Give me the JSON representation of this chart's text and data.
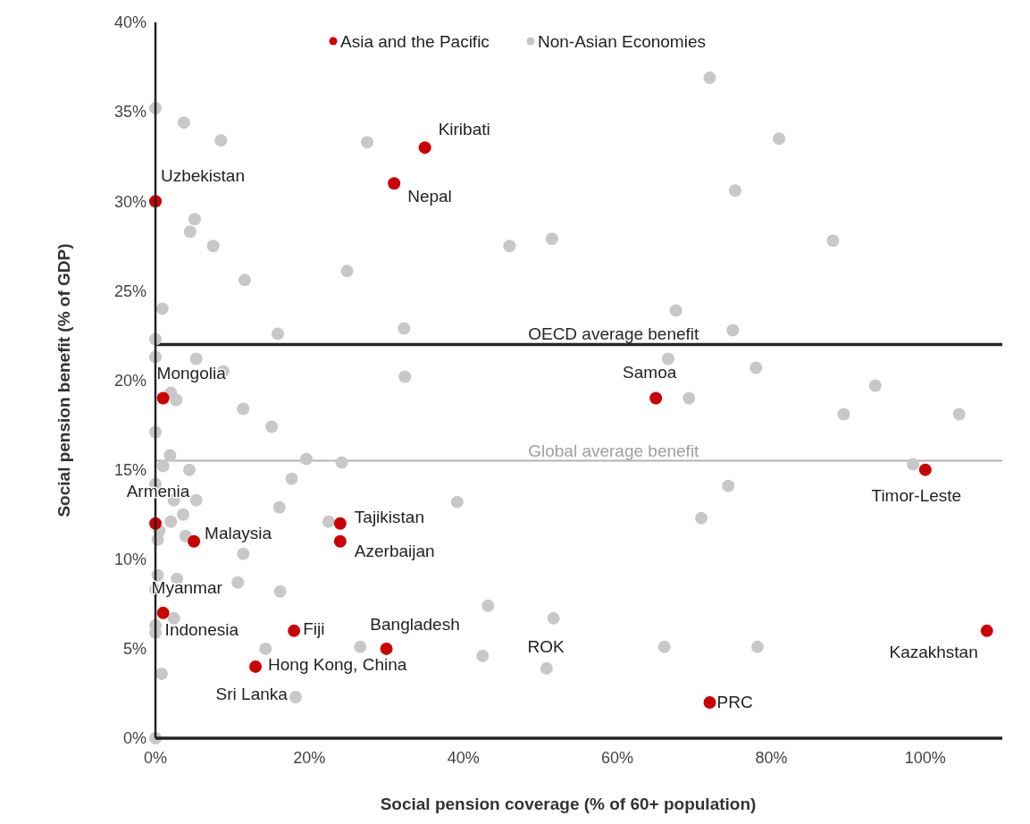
{
  "chart_data": {
    "type": "scatter",
    "xlabel": "Social pension coverage (% of 60+ population)",
    "ylabel": "Social pension benefit (% of GDP)",
    "xlim": [
      0,
      110
    ],
    "ylim": [
      0,
      40
    ],
    "xticks": [
      {
        "value": 0,
        "label": "0%"
      },
      {
        "value": 20,
        "label": "20%"
      },
      {
        "value": 40,
        "label": "40%"
      },
      {
        "value": 60,
        "label": "60%"
      },
      {
        "value": 80,
        "label": "80%"
      },
      {
        "value": 100,
        "label": "100%"
      }
    ],
    "yticks": [
      {
        "value": 0,
        "label": "0%"
      },
      {
        "value": 5,
        "label": "5%"
      },
      {
        "value": 10,
        "label": "10%"
      },
      {
        "value": 15,
        "label": "15%"
      },
      {
        "value": 20,
        "label": "20%"
      },
      {
        "value": 25,
        "label": "25%"
      },
      {
        "value": 30,
        "label": "30%"
      },
      {
        "value": 35,
        "label": "35%"
      },
      {
        "value": 40,
        "label": "40%"
      }
    ],
    "grid": false,
    "legend": "top",
    "marker": "circle",
    "series": [
      {
        "name": "Non-Asian Economies",
        "color": "#c8c8c8",
        "x": [
          0,
          3.7,
          8.5,
          27.5,
          5.1,
          4.5,
          7.5,
          11.6,
          24.9,
          46,
          51.5,
          0.9,
          15.9,
          32.3,
          0,
          0,
          5.3,
          8.8,
          32.4,
          72,
          81,
          75.3,
          88,
          67.6,
          75,
          66.6,
          78,
          93.5,
          69.3,
          89.4,
          104.4,
          98.4,
          74.4,
          70.9,
          51.7,
          66.1,
          78.2,
          50.8,
          2,
          2.7,
          11.4,
          15.1,
          0,
          1.9,
          1,
          4.4,
          19.6,
          24.2,
          39.2,
          17.7,
          0,
          5.3,
          2.4,
          16.1,
          3.6,
          2,
          22.5,
          0.5,
          0.3,
          3.9,
          11.4,
          0.3,
          2.8,
          10.7,
          16.2,
          0,
          0,
          0,
          2.4,
          43.2,
          14.3,
          26.6,
          42.5,
          0.8,
          18.2,
          0
        ],
        "values": [
          35.2,
          34.4,
          33.4,
          33.3,
          29,
          28.3,
          27.5,
          25.6,
          26.1,
          27.5,
          27.9,
          24,
          22.6,
          22.9,
          22.3,
          21.3,
          21.2,
          20.5,
          20.2,
          36.9,
          33.5,
          30.6,
          27.8,
          23.9,
          22.8,
          21.2,
          20.7,
          19.7,
          19,
          18.1,
          18.1,
          15.3,
          14.1,
          12.3,
          6.7,
          5.1,
          5.1,
          3.9,
          19.3,
          18.9,
          18.4,
          17.4,
          17.1,
          15.8,
          15.2,
          15,
          15.6,
          15.4,
          13.2,
          14.5,
          14.2,
          13.3,
          13.3,
          12.9,
          12.5,
          12.1,
          12.1,
          11.6,
          11.1,
          11.3,
          10.3,
          9.1,
          8.9,
          8.7,
          8.2,
          8.3,
          6.3,
          5.9,
          6.7,
          7.4,
          5,
          5.1,
          4.6,
          3.6,
          2.3,
          0
        ]
      },
      {
        "name": "Asia and the Pacific",
        "color": "#cc0000",
        "x": [
          0,
          35,
          31,
          1,
          65,
          100,
          0,
          24,
          24,
          5,
          1,
          18,
          30,
          13,
          72,
          108
        ],
        "values": [
          30,
          33,
          31,
          19,
          19,
          15,
          12,
          12,
          11,
          11,
          7,
          6,
          5,
          4,
          2,
          6
        ]
      }
    ],
    "ref_lines": [
      {
        "axis": "y",
        "value": 22,
        "label": "OECD average benefit",
        "color": "#262626"
      },
      {
        "axis": "y",
        "value": 15.5,
        "label": "Global average benefit",
        "color": "#b4b4b4"
      }
    ],
    "annotations": [
      {
        "text": "Uzbekistan",
        "x": 0,
        "y": 30
      },
      {
        "text": "Kiribati",
        "x": 35,
        "y": 33
      },
      {
        "text": "Nepal",
        "x": 31,
        "y": 31
      },
      {
        "text": "Mongolia",
        "x": 1,
        "y": 19
      },
      {
        "text": "Samoa",
        "x": 65,
        "y": 19
      },
      {
        "text": "Timor-Leste",
        "x": 100,
        "y": 15
      },
      {
        "text": "Armenia",
        "x": 0,
        "y": 12
      },
      {
        "text": "Tajikistan",
        "x": 24,
        "y": 12
      },
      {
        "text": "Azerbaijan",
        "x": 24,
        "y": 11
      },
      {
        "text": "Malaysia",
        "x": 5,
        "y": 11
      },
      {
        "text": "Myanmar",
        "x": 1,
        "y": 7
      },
      {
        "text": "Indonesia",
        "x": 1,
        "y": 7
      },
      {
        "text": "Fiji",
        "x": 18,
        "y": 6
      },
      {
        "text": "Bangladesh",
        "x": 30,
        "y": 5
      },
      {
        "text": "Hong Kong, China",
        "x": 13,
        "y": 4
      },
      {
        "text": "Sri Lanka",
        "x": 18.2,
        "y": 2.3
      },
      "ROK",
      {
        "text": "PRC",
        "x": 72,
        "y": 2
      },
      {
        "text": "Kazakhstan",
        "x": 108,
        "y": 6
      }
    ]
  }
}
